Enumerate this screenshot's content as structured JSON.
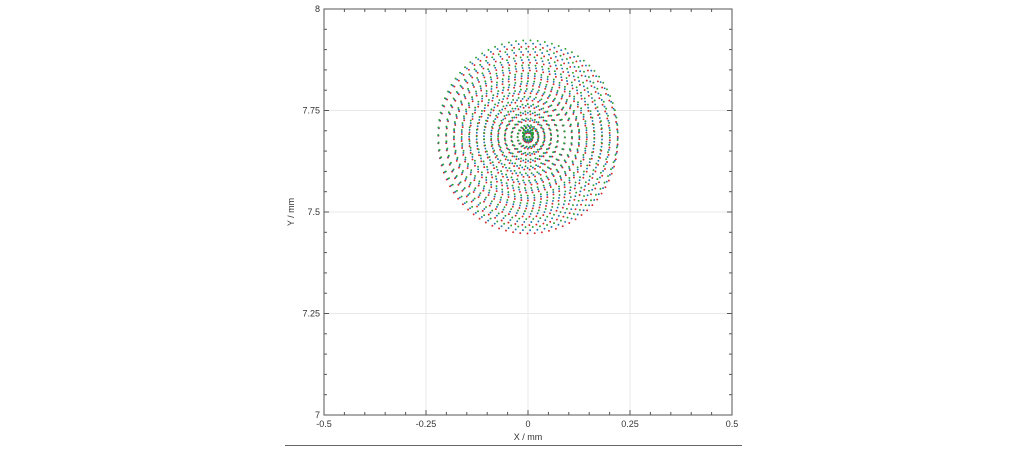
{
  "chart_data": {
    "type": "scatter",
    "title": "",
    "xlabel": "X / mm",
    "ylabel": "Y / mm",
    "xlim": [
      -0.5,
      0.5
    ],
    "ylim": [
      7,
      8
    ],
    "x_ticks": [
      -0.5,
      -0.25,
      0,
      0.25,
      0.5
    ],
    "x_tick_labels": [
      "-0.5",
      "-0.25",
      "0",
      "0.25",
      "0.5"
    ],
    "y_ticks": [
      7,
      7.25,
      7.5,
      7.75,
      8
    ],
    "y_tick_labels": [
      "7",
      "7.25",
      "7.5",
      "7.75",
      "8"
    ],
    "grid": true,
    "legend": "none",
    "spot": {
      "center_x": 0,
      "center_y": 7.685,
      "radius_x": 0.22,
      "radius_y": 0.23,
      "chief_ray": [
        0,
        7.69
      ]
    },
    "series": [
      {
        "color": "#d62728",
        "y_shift": -0.006
      },
      {
        "color": "#1f77b4",
        "y_shift": 0
      },
      {
        "color": "#2ca02c",
        "y_shift": 0.006
      }
    ]
  }
}
